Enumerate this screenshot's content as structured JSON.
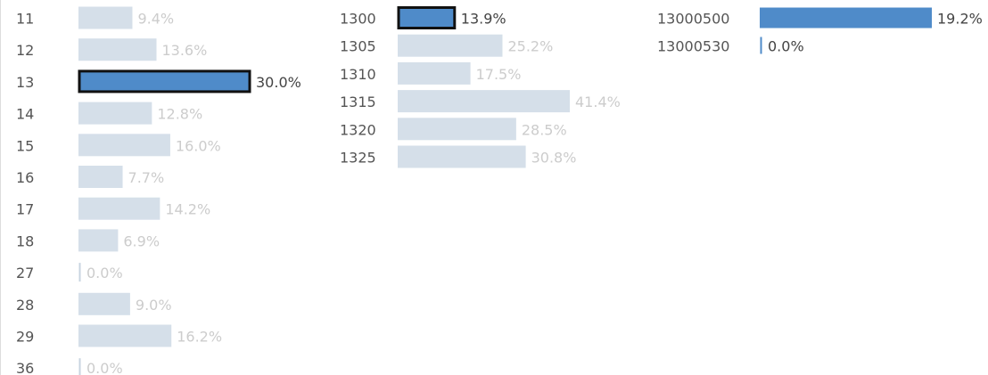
{
  "chart_data": [
    {
      "type": "bar",
      "categories": [
        "11",
        "12",
        "13",
        "14",
        "15",
        "16",
        "17",
        "18",
        "27",
        "28",
        "29",
        "36"
      ],
      "values": [
        9.4,
        13.6,
        30.0,
        12.8,
        16.0,
        7.7,
        14.2,
        6.9,
        0.0,
        9.0,
        16.2,
        0.0
      ],
      "value_labels": [
        "9.4%",
        "13.6%",
        "30.0%",
        "12.8%",
        "16.0%",
        "7.7%",
        "14.2%",
        "6.9%",
        "0.0%",
        "9.0%",
        "16.2%",
        "0.0%"
      ],
      "colors": [
        "#d5dfe9",
        "#d5dfe9",
        "#4f8bc9",
        "#d5dfe9",
        "#d5dfe9",
        "#d5dfe9",
        "#d5dfe9",
        "#d5dfe9",
        "#d5dfe9",
        "#d5dfe9",
        "#d5dfe9",
        "#d5dfe9"
      ],
      "highlight": 2
    },
    {
      "type": "bar",
      "categories": [
        "1300",
        "1305",
        "1310",
        "1315",
        "1320",
        "1325"
      ],
      "values": [
        13.9,
        25.2,
        17.5,
        41.4,
        28.5,
        30.8
      ],
      "value_labels": [
        "13.9%",
        "25.2%",
        "17.5%",
        "41.4%",
        "28.5%",
        "30.8%"
      ],
      "colors": [
        "#4f8bc9",
        "#d5dfe9",
        "#d5dfe9",
        "#d5dfe9",
        "#d5dfe9",
        "#d5dfe9"
      ],
      "highlight": 0
    },
    {
      "type": "bar",
      "categories": [
        "13000500",
        "13000530"
      ],
      "values": [
        19.2,
        0.0
      ],
      "value_labels": [
        "19.2%",
        "0.0%"
      ],
      "colors": [
        "#4f8bc9",
        "#4f8bc9"
      ]
    }
  ]
}
